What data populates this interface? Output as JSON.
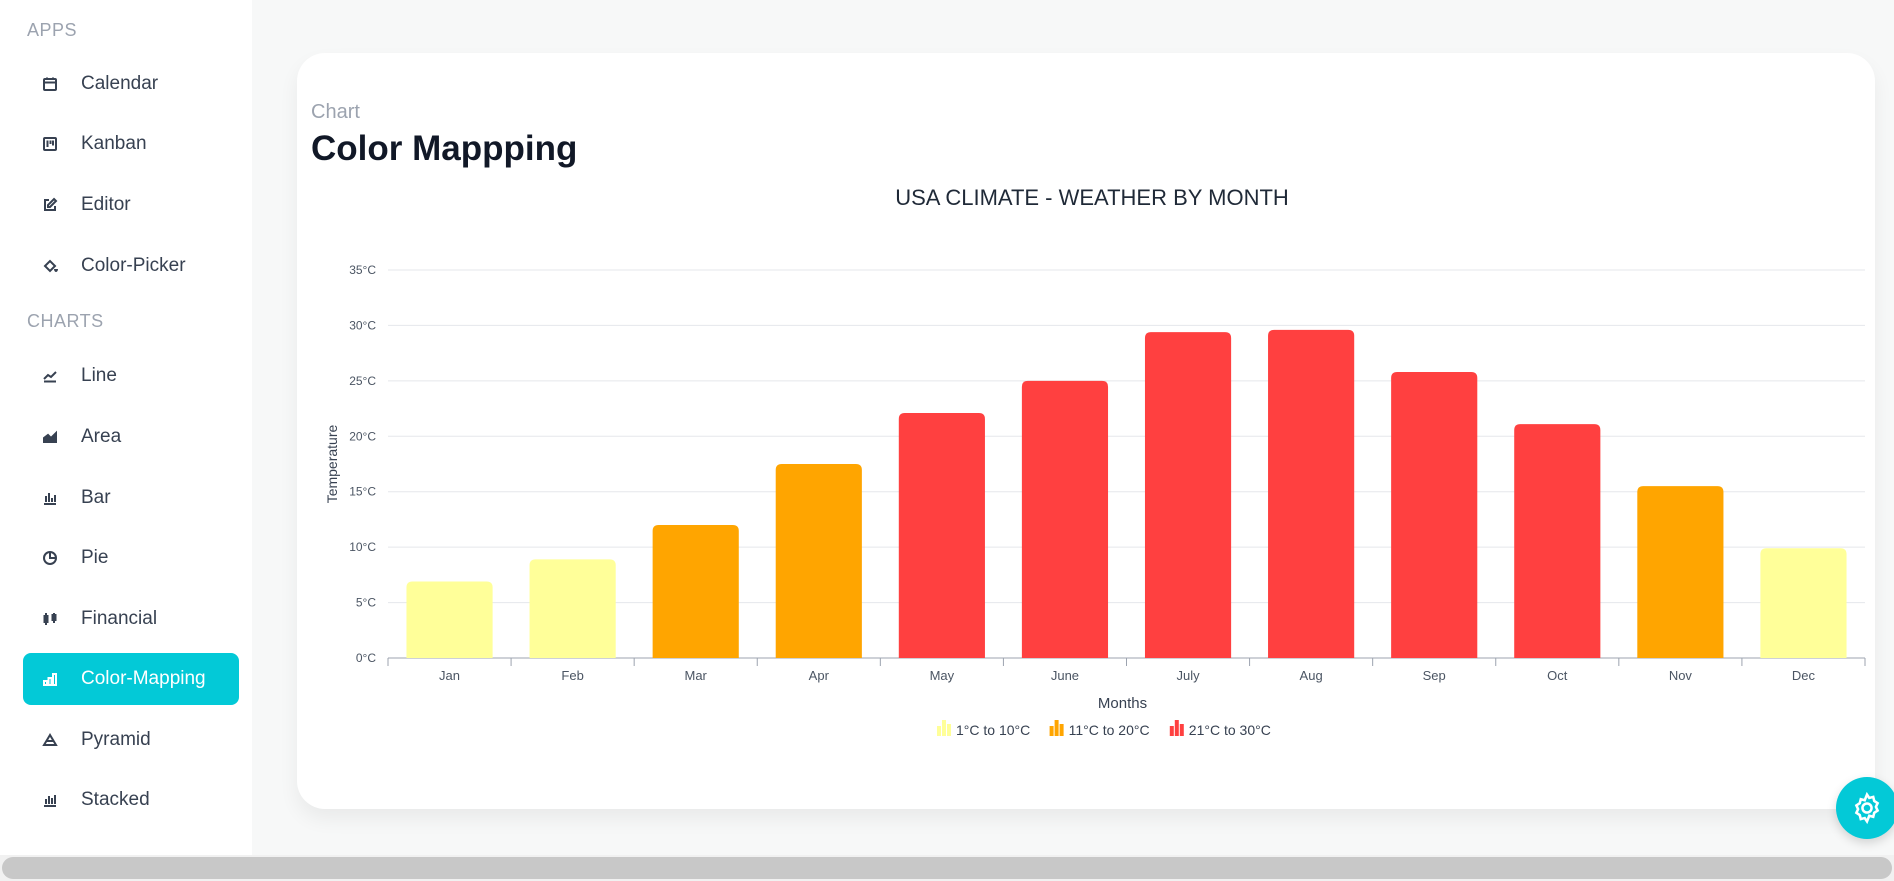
{
  "sidebar": {
    "apps_title": "APPS",
    "apps": [
      {
        "label": "Calendar",
        "icon": "calendar-icon"
      },
      {
        "label": "Kanban",
        "icon": "kanban-icon"
      },
      {
        "label": "Editor",
        "icon": "edit-icon"
      },
      {
        "label": "Color-Picker",
        "icon": "paint-bucket-icon"
      }
    ],
    "charts_title": "CHARTS",
    "charts": [
      {
        "label": "Line",
        "icon": "line-chart-icon"
      },
      {
        "label": "Area",
        "icon": "area-chart-icon"
      },
      {
        "label": "Bar",
        "icon": "bar-chart-icon"
      },
      {
        "label": "Pie",
        "icon": "pie-chart-icon"
      },
      {
        "label": "Financial",
        "icon": "financial-icon"
      },
      {
        "label": "Color-Mapping",
        "icon": "color-mapping-icon",
        "active": true
      },
      {
        "label": "Pyramid",
        "icon": "pyramid-icon"
      },
      {
        "label": "Stacked",
        "icon": "stacked-chart-icon"
      }
    ]
  },
  "header": {
    "subtitle": "Chart",
    "title": "Color Mappping"
  },
  "chart_data": {
    "type": "bar",
    "title": "USA CLIMATE - WEATHER BY MONTH",
    "xlabel": "Months",
    "ylabel": "Temperature",
    "ylim": [
      0,
      35
    ],
    "yticks": [
      "0°C",
      "5°C",
      "10°C",
      "15°C",
      "20°C",
      "25°C",
      "30°C",
      "35°C"
    ],
    "grid": true,
    "legend_position": "bottom-center",
    "categories": [
      "Jan",
      "Feb",
      "Mar",
      "Apr",
      "May",
      "June",
      "July",
      "Aug",
      "Sep",
      "Oct",
      "Nov",
      "Dec"
    ],
    "values": [
      6.9,
      8.9,
      12,
      17.5,
      22.1,
      25,
      29.4,
      29.6,
      25.8,
      21.1,
      15.5,
      9.9
    ],
    "color_ranges": [
      {
        "label": "1°C to 10°C",
        "start": 1,
        "end": 10,
        "color": "#FFFF99"
      },
      {
        "label": "11°C to 20°C",
        "start": 11,
        "end": 20,
        "color": "#FFA500"
      },
      {
        "label": "21°C to 30°C",
        "start": 21,
        "end": 30,
        "color": "#FF4040"
      }
    ]
  },
  "colors": {
    "accent": "#03c9d7"
  }
}
